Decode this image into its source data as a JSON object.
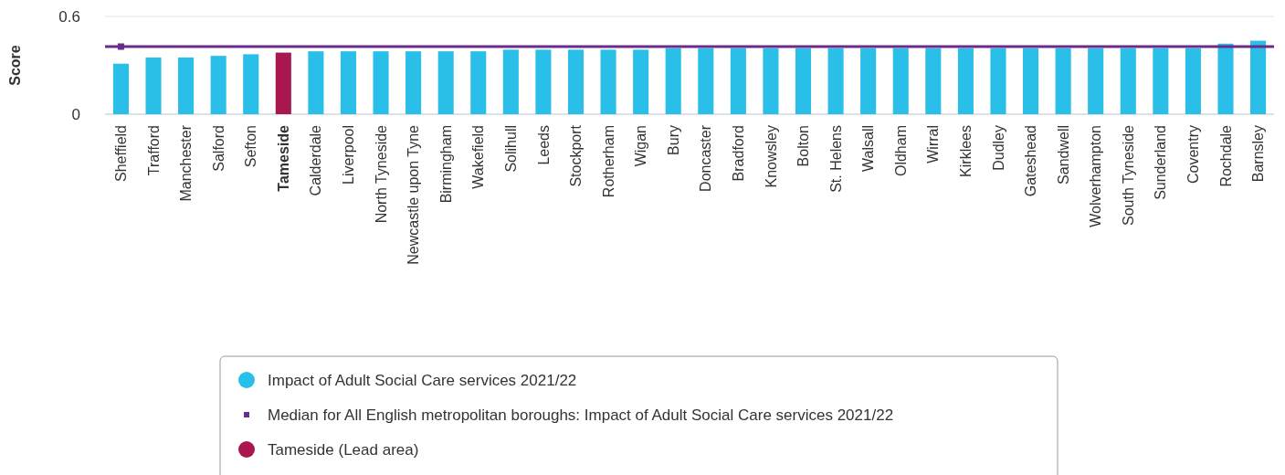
{
  "chart_data": {
    "type": "bar",
    "ylabel": "Score",
    "categories": [
      "Sheffield",
      "Trafford",
      "Manchester",
      "Salford",
      "Sefton",
      "Tameside",
      "Calderdale",
      "Liverpool",
      "North Tyneside",
      "Newcastle upon Tyne",
      "Birmingham",
      "Wakefield",
      "Solihull",
      "Leeds",
      "Stockport",
      "Rotherham",
      "Wigan",
      "Bury",
      "Doncaster",
      "Bradford",
      "Knowsley",
      "Bolton",
      "St. Helens",
      "Walsall",
      "Oldham",
      "Wirral",
      "Kirklees",
      "Dudley",
      "Gateshead",
      "Sandwell",
      "Wolverhampton",
      "South Tyneside",
      "Sunderland",
      "Coventry",
      "Rochdale",
      "Barnsley"
    ],
    "stacked": true,
    "series": [
      {
        "name": "Impact of Adult Social Care services 2021/22",
        "color": "#2abfe8",
        "values": [
          0.31,
          0.348,
          0.348,
          0.358,
          0.368,
          null,
          0.386,
          0.386,
          0.386,
          0.386,
          0.386,
          0.386,
          0.396,
          0.396,
          0.396,
          0.396,
          0.396,
          0.405,
          0.405,
          0.405,
          0.405,
          0.405,
          0.405,
          0.405,
          0.405,
          0.405,
          0.405,
          0.405,
          0.405,
          0.405,
          0.405,
          0.405,
          0.405,
          0.405,
          0.433,
          0.451
        ]
      },
      {
        "name": "Tameside (Lead area)",
        "color": "#a8174f",
        "values": [
          null,
          null,
          null,
          null,
          null,
          0.378,
          null,
          null,
          null,
          null,
          null,
          null,
          null,
          null,
          null,
          null,
          null,
          null,
          null,
          null,
          null,
          null,
          null,
          null,
          null,
          null,
          null,
          null,
          null,
          null,
          null,
          null,
          null,
          null,
          null,
          null
        ]
      }
    ],
    "ref_lines": [
      {
        "axis": "y",
        "value": 0.415,
        "label": "Median for All English metropolitan boroughs: Impact of Adult Social Care services 2021/22",
        "color": "#6b2a8c",
        "line_style": "solid"
      }
    ],
    "ylim": [
      0,
      0.6
    ],
    "yticks": [
      0,
      0.6
    ],
    "grid": "y",
    "legend": "bottom"
  }
}
